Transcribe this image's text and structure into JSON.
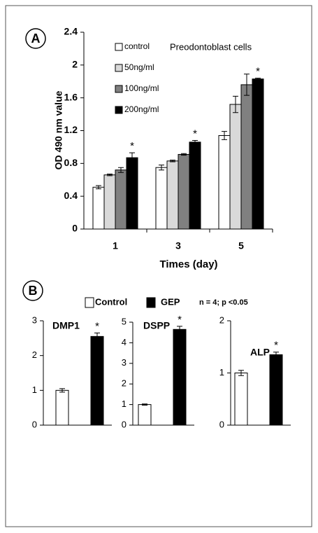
{
  "panel_labels": [
    "A",
    "B"
  ],
  "panel_b": {
    "legend": [
      {
        "name": "Control",
        "color": "#ffffff"
      },
      {
        "name": "GEP",
        "color": "#000000"
      }
    ],
    "note": "n = 4; p <0.05"
  },
  "chart_data": [
    {
      "type": "bar",
      "title": "Preodontoblast cells",
      "ylabel": "OD 490 nm  value",
      "xlabel": "Times (day)",
      "categories": [
        "1",
        "3",
        "5"
      ],
      "series": [
        {
          "name": "control",
          "color": "#ffffff",
          "values": [
            0.51,
            0.75,
            1.14
          ],
          "errors": [
            0.02,
            0.03,
            0.05
          ]
        },
        {
          "name": "50ng/ml",
          "color": "#d9d9d9",
          "values": [
            0.66,
            0.83,
            1.52
          ],
          "errors": [
            0.01,
            0.01,
            0.1
          ]
        },
        {
          "name": "100ng/ml",
          "color": "#808080",
          "values": [
            0.72,
            0.91,
            1.76
          ],
          "errors": [
            0.03,
            0.01,
            0.13
          ]
        },
        {
          "name": "200ng/ml",
          "color": "#000000",
          "values": [
            0.87,
            1.06,
            1.83
          ],
          "errors": [
            0.06,
            0.02,
            0.01
          ]
        }
      ],
      "annotations": [
        "*",
        "*",
        "*"
      ],
      "ylim": [
        0,
        2.4
      ],
      "yticks": [
        0,
        0.4,
        0.8,
        1.2,
        1.6,
        2,
        2.4
      ]
    },
    {
      "type": "bar",
      "title": "DMP1",
      "values": [
        1.0,
        2.55
      ],
      "errors": [
        0.05,
        0.1
      ],
      "annotations": [
        "*"
      ],
      "ylim": [
        0,
        3
      ],
      "yticks": [
        0,
        1,
        2,
        3
      ]
    },
    {
      "type": "bar",
      "title": "DSPP",
      "values": [
        1.0,
        4.65
      ],
      "errors": [
        0.03,
        0.15
      ],
      "annotations": [
        "*"
      ],
      "ylim": [
        0,
        5
      ],
      "yticks": [
        0,
        1,
        2,
        3,
        4,
        5
      ]
    },
    {
      "type": "bar",
      "title": "ALP",
      "values": [
        1.0,
        1.35
      ],
      "errors": [
        0.05,
        0.05
      ],
      "annotations": [
        "*"
      ],
      "ylim": [
        0,
        2
      ],
      "yticks": [
        0,
        1,
        2
      ]
    }
  ]
}
